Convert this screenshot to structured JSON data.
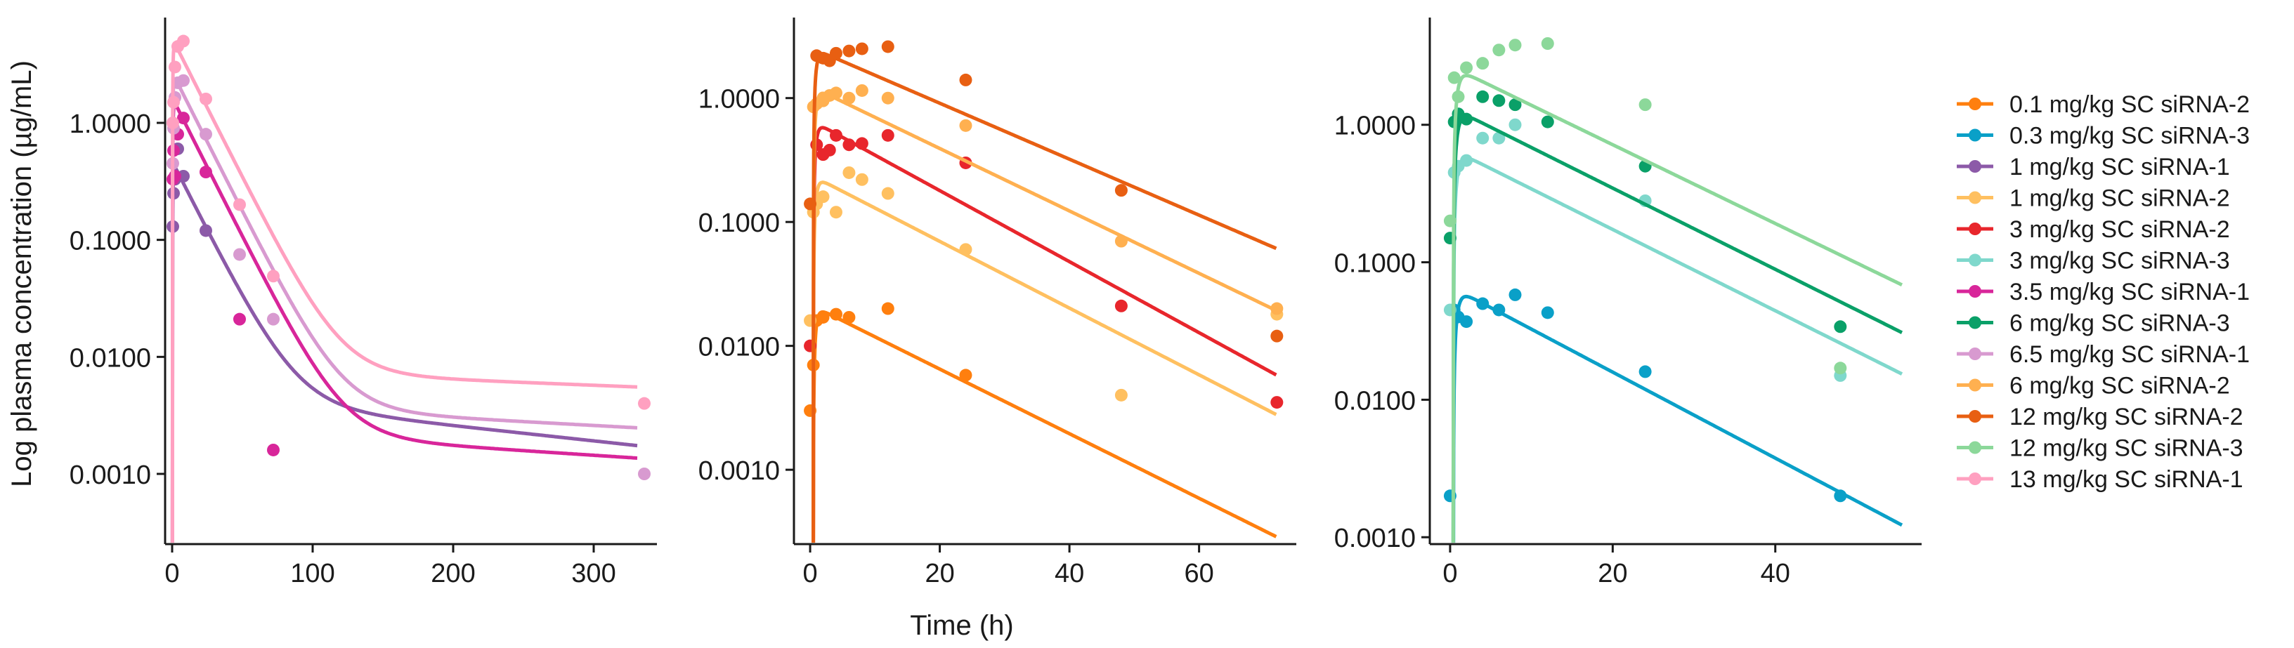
{
  "chart_data": {
    "type": "scatter",
    "description_note": "Three-panel semilog plot; points are observations, lines are model fits",
    "ylabel": "Log plasma concentration (µg/mL)",
    "xlabel": "Time (h)",
    "legend": {
      "placement": "right",
      "entries": [
        {
          "label": "0.1 mg/kg SC siRNA-2",
          "color": "#ff7f0e"
        },
        {
          "label": "0.3 mg/kg SC siRNA-3",
          "color": "#0aa0c8"
        },
        {
          "label": "1 mg/kg SC siRNA-1",
          "color": "#8c5aa8"
        },
        {
          "label": "1 mg/kg SC siRNA-2",
          "color": "#ffc060"
        },
        {
          "label": "3 mg/kg SC siRNA-2",
          "color": "#e8262c"
        },
        {
          "label": "3 mg/kg SC siRNA-3",
          "color": "#7fd8cc"
        },
        {
          "label": "3.5 mg/kg SC siRNA-1",
          "color": "#d8269a"
        },
        {
          "label": "6 mg/kg SC siRNA-3",
          "color": "#0aa068"
        },
        {
          "label": "6.5 mg/kg SC siRNA-1",
          "color": "#d89ad0"
        },
        {
          "label": "6 mg/kg SC siRNA-2",
          "color": "#ffb050"
        },
        {
          "label": "12 mg/kg SC siRNA-2",
          "color": "#e85f12"
        },
        {
          "label": "12 mg/kg SC siRNA-3",
          "color": "#8cd89a"
        },
        {
          "label": "13 mg/kg SC siRNA-1",
          "color": "#ffa0c0"
        }
      ]
    },
    "panels": [
      {
        "id": "siRNA-1",
        "xlim": [
          -5,
          345
        ],
        "ylim_log10": [
          -3.6,
          0.9
        ],
        "xticks": [
          0,
          100,
          200,
          300
        ],
        "yticks": [
          {
            "value": 1.0,
            "label": "1.0000"
          },
          {
            "value": 0.1,
            "label": "0.1000"
          },
          {
            "value": 0.01,
            "label": "0.0100"
          },
          {
            "value": 0.001,
            "label": "0.0010"
          }
        ],
        "series": [
          {
            "name": "1 mg/kg SC siRNA-1",
            "color": "#8c5aa8",
            "x": [
              0.5,
              1,
              2,
              4,
              8,
              24
            ],
            "y": [
              0.13,
              0.25,
              0.33,
              0.6,
              0.35,
              0.12
            ],
            "fit": {
              "cmax": 0.4,
              "a": 0.99,
              "k1": 0.055,
              "k2": 0.003,
              "ka": 1.0,
              "tlag": 0.25
            }
          },
          {
            "name": "3.5 mg/kg SC siRNA-1",
            "color": "#d8269a",
            "x": [
              0.5,
              1,
              2,
              4,
              8,
              24,
              48,
              72
            ],
            "y": [
              0.33,
              0.58,
              0.35,
              0.8,
              1.1,
              0.38,
              0.021,
              0.0016
            ],
            "fit": {
              "cmax": 1.4,
              "a": 0.9985,
              "k1": 0.055,
              "k2": 0.0018,
              "ka": 1.0,
              "tlag": 0.25
            }
          },
          {
            "name": "6.5 mg/kg SC siRNA-1",
            "color": "#d89ad0",
            "x": [
              0.5,
              1,
              2,
              4,
              8,
              24,
              48,
              72,
              336
            ],
            "y": [
              0.45,
              0.9,
              1.65,
              2.2,
              2.3,
              0.8,
              0.075,
              0.021,
              0.001
            ],
            "fit": {
              "cmax": 2.3,
              "a": 0.9985,
              "k1": 0.055,
              "k2": 0.0015,
              "ka": 1.0,
              "tlag": 0.25
            }
          },
          {
            "name": "13 mg/kg SC siRNA-1",
            "color": "#ffa0c0",
            "x": [
              0.5,
              1,
              2,
              4,
              8,
              24,
              48,
              72,
              336
            ],
            "y": [
              1.0,
              1.5,
              3.0,
              4.5,
              5.0,
              1.6,
              0.2,
              0.049,
              0.004
            ],
            "fit": {
              "cmax": 4.5,
              "a": 0.9985,
              "k1": 0.055,
              "k2": 0.0011,
              "ka": 1.0,
              "tlag": 0.25
            }
          }
        ]
      },
      {
        "id": "siRNA-2",
        "xlim": [
          -2.5,
          75
        ],
        "ylim_log10": [
          -3.6,
          0.65
        ],
        "xticks": [
          0,
          20,
          40,
          60
        ],
        "yticks": [
          {
            "value": 1.0,
            "label": "1.0000"
          },
          {
            "value": 0.1,
            "label": "0.1000"
          },
          {
            "value": 0.01,
            "label": "0.0100"
          },
          {
            "value": 0.001,
            "label": "0.0010"
          }
        ],
        "series": [
          {
            "name": "0.1 mg/kg SC siRNA-2",
            "color": "#ff7f0e",
            "x": [
              0,
              0.5,
              1,
              2,
              4,
              6,
              12,
              24
            ],
            "y": [
              0.003,
              0.007,
              0.016,
              0.017,
              0.018,
              0.017,
              0.02,
              0.0058
            ],
            "fit": {
              "cmax": 0.018,
              "a": 0.0,
              "k1": 0.0,
              "k2": 0.06,
              "ka": 1.2,
              "tlag": 0.5
            }
          },
          {
            "name": "1 mg/kg SC siRNA-2",
            "color": "#ffc060",
            "x": [
              0,
              0.5,
              1,
              2,
              4,
              6,
              8,
              12,
              24,
              48,
              72
            ],
            "y": [
              0.016,
              0.12,
              0.14,
              0.16,
              0.12,
              0.25,
              0.22,
              0.17,
              0.06,
              0.004,
              0.018
            ],
            "fit": {
              "cmax": 0.2,
              "a": 0.0,
              "k1": 0.0,
              "k2": 0.062,
              "ka": 1.2,
              "tlag": 0.5
            }
          },
          {
            "name": "3 mg/kg SC siRNA-2",
            "color": "#e8262c",
            "x": [
              0,
              1,
              2,
              3,
              4,
              6,
              8,
              12,
              24,
              48,
              72
            ],
            "y": [
              0.01,
              0.42,
              0.35,
              0.38,
              0.5,
              0.42,
              0.43,
              0.5,
              0.3,
              0.021,
              0.0035
            ],
            "fit": {
              "cmax": 0.55,
              "a": 0.0,
              "k1": 0.0,
              "k2": 0.066,
              "ka": 1.2,
              "tlag": 0.5
            }
          },
          {
            "name": "6 mg/kg SC siRNA-2",
            "color": "#ffb050",
            "x": [
              0.5,
              1,
              2,
              3,
              4,
              6,
              8,
              12,
              24,
              48,
              72
            ],
            "y": [
              0.85,
              0.9,
              0.95,
              1.05,
              1.1,
              1.0,
              1.15,
              1.0,
              0.6,
              0.07,
              0.02
            ],
            "fit": {
              "cmax": 1.05,
              "a": 0.0,
              "k1": 0.0,
              "k2": 0.058,
              "ka": 1.2,
              "tlag": 0.5
            }
          },
          {
            "name": "12 mg/kg SC siRNA-2",
            "color": "#e85f12",
            "x": [
              0,
              1,
              2,
              3,
              4,
              6,
              8,
              12,
              24,
              48,
              72
            ],
            "y": [
              0.14,
              2.2,
              2.1,
              2.0,
              2.3,
              2.4,
              2.5,
              2.6,
              1.4,
              0.18,
              0.012
            ],
            "fit": {
              "cmax": 2.2,
              "a": 0.0,
              "k1": 0.0,
              "k2": 0.052,
              "ka": 1.2,
              "tlag": 0.5
            }
          }
        ]
      },
      {
        "id": "siRNA-3",
        "xlim": [
          -2.5,
          58
        ],
        "ylim_log10": [
          -3.05,
          0.78
        ],
        "xticks": [
          0,
          20,
          40
        ],
        "yticks": [
          {
            "value": 1.0,
            "label": "1.0000"
          },
          {
            "value": 0.1,
            "label": "0.1000"
          },
          {
            "value": 0.01,
            "label": "0.0100"
          },
          {
            "value": 0.001,
            "label": "0.0010"
          }
        ],
        "series": [
          {
            "name": "0.3 mg/kg SC siRNA-3",
            "color": "#0aa0c8",
            "x": [
              0,
              0.5,
              1,
              2,
              4,
              6,
              8,
              12,
              24,
              48
            ],
            "y": [
              0.002,
              0.045,
              0.04,
              0.037,
              0.05,
              0.045,
              0.058,
              0.043,
              0.016,
              0.002
            ],
            "fit": {
              "cmax": 0.054,
              "a": 0.0,
              "k1": 0.0,
              "k2": 0.072,
              "ka": 1.0,
              "tlag": 0.4
            }
          },
          {
            "name": "3 mg/kg SC siRNA-3",
            "color": "#7fd8cc",
            "x": [
              0,
              0.5,
              1,
              2,
              4,
              6,
              8,
              24,
              48
            ],
            "y": [
              0.045,
              0.45,
              0.5,
              0.55,
              0.8,
              0.8,
              1.0,
              0.28,
              0.015
            ],
            "fit": {
              "cmax": 0.55,
              "a": 0.0,
              "k1": 0.0,
              "k2": 0.068,
              "ka": 1.0,
              "tlag": 0.4
            }
          },
          {
            "name": "6 mg/kg SC siRNA-3",
            "color": "#0aa068",
            "x": [
              0,
              0.5,
              1,
              2,
              4,
              6,
              8,
              12,
              24,
              48
            ],
            "y": [
              0.15,
              1.05,
              1.2,
              1.1,
              1.6,
              1.5,
              1.4,
              1.05,
              0.5,
              0.034
            ],
            "fit": {
              "cmax": 1.1,
              "a": 0.0,
              "k1": 0.0,
              "k2": 0.068,
              "ka": 1.0,
              "tlag": 0.4
            }
          },
          {
            "name": "12 mg/kg SC siRNA-3",
            "color": "#8cd89a",
            "x": [
              0,
              0.5,
              1,
              2,
              4,
              6,
              8,
              12,
              24,
              48
            ],
            "y": [
              0.2,
              2.2,
              1.6,
              2.6,
              2.8,
              3.5,
              3.8,
              3.9,
              1.4,
              0.017
            ],
            "fit": {
              "cmax": 2.2,
              "a": 0.0,
              "k1": 0.0,
              "k2": 0.066,
              "ka": 1.0,
              "tlag": 0.4
            }
          }
        ]
      }
    ]
  }
}
